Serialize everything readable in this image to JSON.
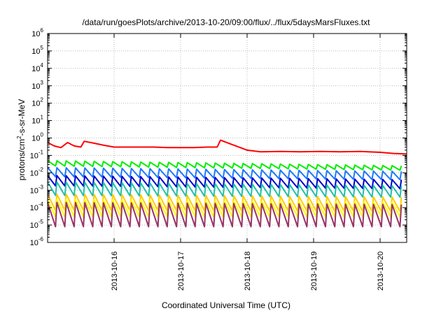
{
  "chart_data": {
    "type": "line",
    "title": "/data/run/goesPlots/archive/2013-10-20/09:00/flux/../flux/5daysMarsFluxes.txt",
    "xlabel": "Coordinated Universal Time (UTC)",
    "ylabel": "protons/cm²-s-sr-MeV",
    "ylabel_parts": [
      "protons/cm",
      "2",
      "-s-sr-MeV"
    ],
    "yscale": "log",
    "ylim": [
      1e-06,
      1000000.0
    ],
    "y_tick_exponents": [
      -6,
      -5,
      -4,
      -3,
      -2,
      -1,
      0,
      1,
      2,
      3,
      4,
      5,
      6
    ],
    "y_tick_base": "10",
    "x_range_days": [
      15.0,
      20.4
    ],
    "x_ticks": [
      {
        "label": "2013-10-16",
        "day": 16
      },
      {
        "label": "2013-10-17",
        "day": 17
      },
      {
        "label": "2013-10-18",
        "day": 18
      },
      {
        "label": "2013-10-19",
        "day": 19
      },
      {
        "label": "2013-10-20",
        "day": 20
      }
    ],
    "grid": true,
    "legend": "none",
    "series": [
      {
        "color": "#ff0000",
        "points": [
          [
            15.0,
            0.55
          ],
          [
            15.1,
            0.35
          ],
          [
            15.2,
            0.28
          ],
          [
            15.3,
            0.55
          ],
          [
            15.4,
            0.35
          ],
          [
            15.5,
            0.3
          ],
          [
            15.55,
            0.65
          ],
          [
            15.7,
            0.5
          ],
          [
            15.85,
            0.38
          ],
          [
            16.0,
            0.3
          ],
          [
            16.2,
            0.3
          ],
          [
            16.4,
            0.3
          ],
          [
            16.6,
            0.3
          ],
          [
            16.8,
            0.28
          ],
          [
            17.0,
            0.28
          ],
          [
            17.2,
            0.28
          ],
          [
            17.4,
            0.3
          ],
          [
            17.55,
            0.3
          ],
          [
            17.6,
            0.75
          ],
          [
            17.75,
            0.45
          ],
          [
            17.9,
            0.28
          ],
          [
            18.0,
            0.2
          ],
          [
            18.2,
            0.16
          ],
          [
            18.5,
            0.17
          ],
          [
            18.8,
            0.16
          ],
          [
            19.1,
            0.17
          ],
          [
            19.4,
            0.16
          ],
          [
            19.7,
            0.17
          ],
          [
            20.0,
            0.15
          ],
          [
            20.2,
            0.13
          ],
          [
            20.4,
            0.12
          ]
        ]
      },
      {
        "color": "#00ee00",
        "periodic": {
          "period": 0.14,
          "peak_start": 0.05,
          "peak_end": 0.025,
          "trough_start": 0.025,
          "trough_end": 0.014
        }
      },
      {
        "color": "#1e78ff",
        "periodic": {
          "period": 0.14,
          "peak_start": 0.02,
          "peak_end": 0.012,
          "trough_start": 0.006,
          "trough_end": 0.004
        }
      },
      {
        "color": "#0000cc",
        "periodic": {
          "period": 0.14,
          "peak_start": 0.007,
          "peak_end": 0.004,
          "trough_start": 0.0018,
          "trough_end": 0.0012
        }
      },
      {
        "color": "#20c0a8",
        "periodic": {
          "period": 0.14,
          "peak_start": 0.003,
          "peak_end": 0.0018,
          "trough_start": 0.0005,
          "trough_end": 0.0004
        }
      },
      {
        "color": "#ffcc00",
        "periodic": {
          "period": 0.14,
          "peak_start": 0.0006,
          "peak_end": 0.0004,
          "trough_start": 7e-05,
          "trough_end": 6e-05
        }
      },
      {
        "color": "#ffff00",
        "periodic": {
          "period": 0.14,
          "peak_start": 0.0003,
          "peak_end": 0.0002,
          "trough_start": 3e-05,
          "trough_end": 3e-05
        }
      },
      {
        "color": "#993366",
        "periodic": {
          "period": 0.14,
          "peak_start": 0.0002,
          "peak_end": 0.00015,
          "trough_start": 8e-06,
          "trough_end": 8e-06
        }
      }
    ]
  }
}
